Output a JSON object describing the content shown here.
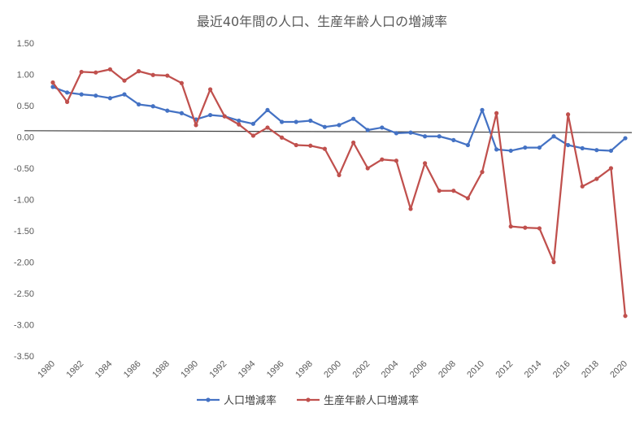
{
  "chart_data": {
    "type": "line",
    "title": "最近40年間の人口、生産年齢人口の増減率",
    "xlabel": "",
    "ylabel": "",
    "ylim": [
      -3.5,
      1.5
    ],
    "yticks": [
      1.5,
      1.0,
      0.5,
      0.0,
      -0.5,
      -1.0,
      -1.5,
      -2.0,
      -2.5,
      -3.0,
      -3.5
    ],
    "ytick_labels": [
      "1.50",
      "1.00",
      "0.50",
      "0.00",
      "-0.50",
      "-1.00",
      "-1.50",
      "-2.00",
      "-2.50",
      "-3.00",
      "-3.50"
    ],
    "x": [
      1980,
      1981,
      1982,
      1983,
      1984,
      1985,
      1986,
      1987,
      1988,
      1989,
      1990,
      1991,
      1992,
      1993,
      1994,
      1995,
      1996,
      1997,
      1998,
      1999,
      2000,
      2001,
      2002,
      2003,
      2004,
      2005,
      2006,
      2007,
      2008,
      2009,
      2010,
      2011,
      2012,
      2013,
      2014,
      2015,
      2016,
      2017,
      2018,
      2019,
      2020
    ],
    "xtick_labels": [
      "1980",
      "1982",
      "1984",
      "1986",
      "1988",
      "1990",
      "1992",
      "1994",
      "1996",
      "1998",
      "2000",
      "2002",
      "2004",
      "2006",
      "2008",
      "2010",
      "2012",
      "2014",
      "2016",
      "2018",
      "2020"
    ],
    "grid": false,
    "legend_position": "bottom",
    "series": [
      {
        "name": "人口増減率",
        "color": "#4472c4",
        "values": [
          0.8,
          0.71,
          0.68,
          0.66,
          0.62,
          0.68,
          0.52,
          0.49,
          0.42,
          0.38,
          0.28,
          0.35,
          0.33,
          0.26,
          0.21,
          0.43,
          0.24,
          0.24,
          0.26,
          0.16,
          0.19,
          0.29,
          0.11,
          0.15,
          0.06,
          0.07,
          0.01,
          0.01,
          -0.05,
          -0.13,
          0.43,
          -0.2,
          -0.22,
          -0.17,
          -0.17,
          0.01,
          -0.13,
          -0.18,
          -0.21,
          -0.22,
          -0.02
        ]
      },
      {
        "name": "生産年齢人口増減率",
        "color": "#c0504d",
        "values": [
          0.87,
          0.56,
          1.04,
          1.03,
          1.08,
          0.9,
          1.05,
          0.99,
          0.98,
          0.86,
          0.19,
          0.76,
          0.33,
          0.2,
          0.02,
          0.15,
          -0.01,
          -0.13,
          -0.14,
          -0.19,
          -0.61,
          -0.09,
          -0.5,
          -0.36,
          -0.38,
          -1.15,
          -0.42,
          -0.86,
          -0.86,
          -0.98,
          -0.56,
          0.38,
          -1.43,
          -1.45,
          -1.46,
          -2.0,
          0.36,
          -0.79,
          -0.67,
          -0.5,
          -2.86
        ]
      }
    ],
    "reference_line": {
      "start_value": 0.1,
      "end_value": 0.07,
      "color": "#404040"
    }
  }
}
